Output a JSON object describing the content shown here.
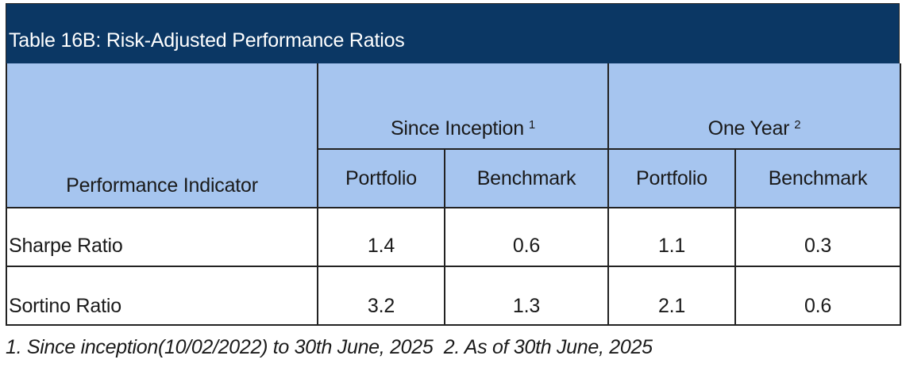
{
  "table": {
    "title": "Table 16B: Risk-Adjusted Performance Ratios",
    "indicator_header": "Performance Indicator",
    "groups": [
      {
        "label": "Since Inception",
        "note": "1"
      },
      {
        "label": "One Year",
        "note": "2"
      }
    ],
    "sub_headers": [
      "Portfolio",
      "Benchmark",
      "Portfolio",
      "Benchmark"
    ],
    "rows": [
      {
        "label": "Sharpe Ratio",
        "values": [
          "1.4",
          "0.6",
          "1.1",
          "0.3"
        ]
      },
      {
        "label": "Sortino Ratio",
        "values": [
          "3.2",
          "1.3",
          "2.1",
          "0.6"
        ]
      }
    ],
    "footnote": "1. Since inception(10/02/2022) to 30th June, 2025  2. As of 30th June, 2025"
  },
  "colors": {
    "title_background": "#0b3764",
    "header_background": "#a6c5ef"
  }
}
